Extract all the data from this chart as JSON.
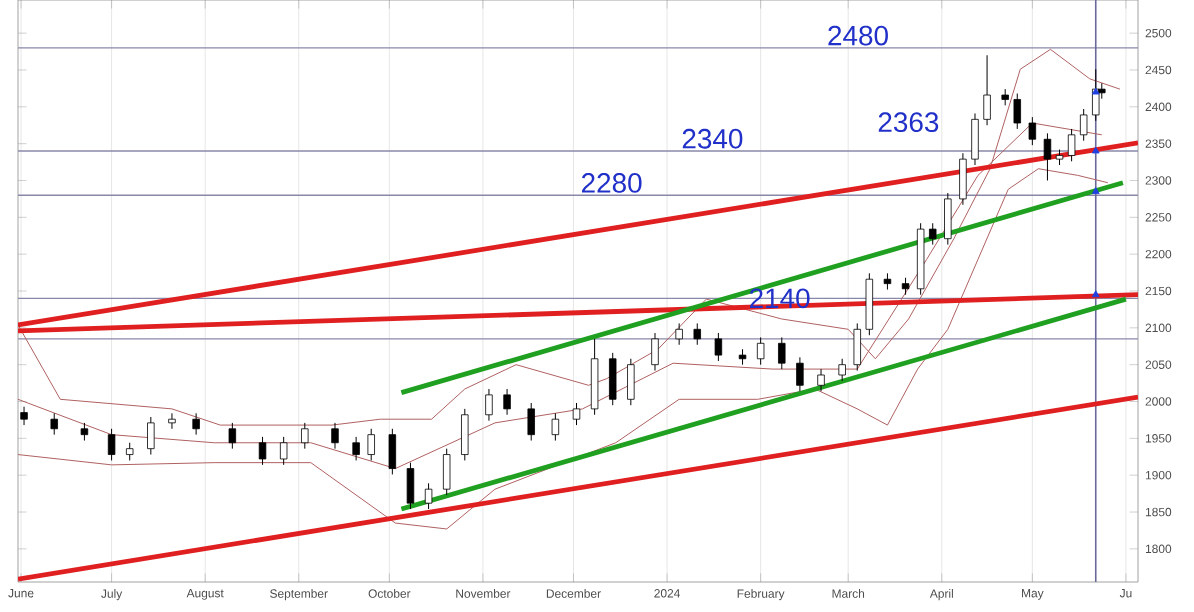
{
  "chart_data": {
    "type": "candlestick",
    "x": [
      "2023-06-02",
      "2023-06-12",
      "2023-06-22",
      "2023-07-01",
      "2023-07-07",
      "2023-07-14",
      "2023-07-21",
      "2023-07-29",
      "2023-08-10",
      "2023-08-20",
      "2023-08-27",
      "2023-09-03",
      "2023-09-13",
      "2023-09-20",
      "2023-09-25",
      "2023-10-02",
      "2023-10-08",
      "2023-10-14",
      "2023-10-20",
      "2023-10-26",
      "2023-11-03",
      "2023-11-09",
      "2023-11-17",
      "2023-11-25",
      "2023-12-02",
      "2023-12-08",
      "2023-12-14",
      "2023-12-20",
      "2023-12-28",
      "2024-01-05",
      "2024-01-11",
      "2024-01-18",
      "2024-01-26",
      "2024-02-01",
      "2024-02-08",
      "2024-02-14",
      "2024-02-21",
      "2024-02-28",
      "2024-03-04",
      "2024-03-08",
      "2024-03-14",
      "2024-03-20",
      "2024-03-25",
      "2024-03-29",
      "2024-04-03",
      "2024-04-08",
      "2024-04-12",
      "2024-04-16",
      "2024-04-22",
      "2024-04-26",
      "2024-05-01",
      "2024-05-06",
      "2024-05-10",
      "2024-05-14",
      "2024-05-18",
      "2024-05-22",
      "2024-05-24"
    ],
    "ohlc": [
      [
        1985,
        1993,
        1968,
        1976
      ],
      [
        1976,
        1984,
        1955,
        1963
      ],
      [
        1963,
        1971,
        1947,
        1955
      ],
      [
        1955,
        1963,
        1920,
        1928
      ],
      [
        1928,
        1944,
        1920,
        1936
      ],
      [
        1936,
        1979,
        1928,
        1971
      ],
      [
        1971,
        1984,
        1963,
        1976
      ],
      [
        1976,
        1984,
        1955,
        1963
      ],
      [
        1963,
        1971,
        1936,
        1944
      ],
      [
        1944,
        1952,
        1914,
        1922
      ],
      [
        1922,
        1952,
        1914,
        1944
      ],
      [
        1944,
        1971,
        1936,
        1963
      ],
      [
        1963,
        1971,
        1936,
        1944
      ],
      [
        1944,
        1952,
        1920,
        1928
      ],
      [
        1928,
        1963,
        1920,
        1955
      ],
      [
        1955,
        1963,
        1901,
        1909
      ],
      [
        1909,
        1917,
        1854,
        1862
      ],
      [
        1862,
        1889,
        1854,
        1881
      ],
      [
        1881,
        1936,
        1873,
        1928
      ],
      [
        1928,
        1990,
        1920,
        1982
      ],
      [
        1982,
        2017,
        1974,
        2009
      ],
      [
        2009,
        2017,
        1982,
        1990
      ],
      [
        1990,
        1998,
        1947,
        1955
      ],
      [
        1955,
        1984,
        1947,
        1976
      ],
      [
        1976,
        1998,
        1968,
        1990
      ],
      [
        1990,
        2085,
        1982,
        2058
      ],
      [
        2058,
        2066,
        1995,
        2003
      ],
      [
        2003,
        2058,
        1995,
        2050
      ],
      [
        2050,
        2093,
        2042,
        2085
      ],
      [
        2085,
        2106,
        2077,
        2098
      ],
      [
        2098,
        2106,
        2077,
        2085
      ],
      [
        2085,
        2093,
        2055,
        2063
      ],
      [
        2063,
        2071,
        2050,
        2058
      ],
      [
        2058,
        2087,
        2050,
        2079
      ],
      [
        2079,
        2087,
        2044,
        2052
      ],
      [
        2052,
        2060,
        2014,
        2022
      ],
      [
        2022,
        2044,
        2014,
        2036
      ],
      [
        2036,
        2058,
        2028,
        2050
      ],
      [
        2050,
        2106,
        2042,
        2098
      ],
      [
        2098,
        2174,
        2090,
        2166
      ],
      [
        2166,
        2174,
        2152,
        2160
      ],
      [
        2160,
        2168,
        2145,
        2153
      ],
      [
        2153,
        2242,
        2145,
        2234
      ],
      [
        2234,
        2242,
        2213,
        2221
      ],
      [
        2221,
        2283,
        2213,
        2275
      ],
      [
        2275,
        2337,
        2267,
        2329
      ],
      [
        2329,
        2391,
        2321,
        2383
      ],
      [
        2383,
        2470,
        2375,
        2416
      ],
      [
        2416,
        2424,
        2402,
        2410
      ],
      [
        2410,
        2418,
        2370,
        2378
      ],
      [
        2378,
        2386,
        2348,
        2356
      ],
      [
        2356,
        2364,
        2300,
        2329
      ],
      [
        2329,
        2342,
        2321,
        2334
      ],
      [
        2334,
        2370,
        2326,
        2362
      ],
      [
        2362,
        2397,
        2354,
        2389
      ],
      [
        2389,
        2451,
        2381,
        2424
      ],
      [
        2424,
        2432,
        2411,
        2419
      ]
    ],
    "color": "#000000",
    "series": [
      {
        "type": "line",
        "color": "#b06060",
        "x": [
          "2023-05-31",
          "2023-06-14",
          "2023-07-21",
          "2023-08-06",
          "2023-09-12",
          "2023-09-28",
          "2023-10-15",
          "2023-10-26",
          "2023-11-12",
          "2023-12-06",
          "2023-12-12",
          "2023-12-29",
          "2024-01-14",
          "2024-02-08",
          "2024-03-01",
          "2024-03-10",
          "2024-03-21",
          "2024-04-05",
          "2024-04-17",
          "2024-04-27",
          "2024-05-07",
          "2024-05-20",
          "2024-05-30"
        ],
        "values": [
          2104,
          2003,
          1990,
          1968,
          1968,
          1976,
          1976,
          2017,
          2050,
          2022,
          2031,
          2071,
          2139,
          2112,
          2098,
          2058,
          2112,
          2221,
          2316,
          2451,
          2478,
          2438,
          2424
        ]
      },
      {
        "type": "line",
        "color": "#b06060",
        "x": [
          "2023-05-31",
          "2023-07-01",
          "2023-08-04",
          "2023-09-05",
          "2023-10-03",
          "2023-11-05",
          "2023-12-04",
          "2024-01-03",
          "2024-02-05",
          "2024-03-04",
          "2024-03-27",
          "2024-04-13",
          "2024-05-01",
          "2024-05-24"
        ],
        "values": [
          2003,
          1955,
          1944,
          1944,
          1909,
          1971,
          1990,
          2052,
          2044,
          2044,
          2193,
          2307,
          2378,
          2362
        ]
      },
      {
        "type": "line",
        "color": "#b06060",
        "x": [
          "2023-05-31",
          "2023-07-01",
          "2023-08-04",
          "2023-09-05",
          "2023-10-03",
          "2023-10-20",
          "2023-11-05",
          "2023-12-06",
          "2023-12-15",
          "2024-01-05",
          "2024-01-31",
          "2024-02-19",
          "2024-03-04",
          "2024-03-14",
          "2024-03-24",
          "2024-04-03",
          "2024-04-13",
          "2024-04-23",
          "2024-05-03",
          "2024-05-16",
          "2024-05-26"
        ],
        "values": [
          1928,
          1914,
          1917,
          1917,
          1835,
          1827,
          1881,
          null,
          1944,
          2003,
          2003,
          2017,
          1990,
          1968,
          2044,
          2098,
          2193,
          2288,
          2316,
          2307,
          2297
        ]
      },
      {
        "type": "line",
        "color": "#e02020",
        "x": [
          "2023-05-31",
          "2024-06-05"
        ],
        "values": [
          2104,
          2351
        ]
      },
      {
        "type": "line",
        "color": "#e02020",
        "x": [
          "2023-05-31",
          "2024-06-05"
        ],
        "values": [
          2096,
          2145
        ]
      },
      {
        "type": "line",
        "color": "#e02020",
        "x": [
          "2023-05-31",
          "2024-06-05"
        ],
        "values": [
          1759,
          2006
        ]
      },
      {
        "type": "line",
        "color": "#20a020",
        "x": [
          "2023-10-05",
          "2024-05-31"
        ],
        "values": [
          2012,
          2297
        ]
      },
      {
        "type": "line",
        "color": "#20a020",
        "x": [
          "2023-10-05",
          "2024-06-01"
        ],
        "values": [
          1854,
          2139
        ]
      },
      {
        "type": "scatter",
        "color": "#2040e0",
        "marker": "triangle",
        "x": [
          "2024-05-22",
          "2024-05-22",
          "2024-05-22",
          "2024-05-22"
        ],
        "values": [
          2420,
          2340,
          2285,
          2145
        ]
      }
    ],
    "ref_lines": [
      {
        "axis": "y",
        "value": 2480,
        "color": "#8888aa",
        "label": "2480"
      },
      {
        "axis": "y",
        "value": 2340,
        "color": "#8888aa",
        "label": "2340"
      },
      {
        "axis": "y",
        "value": 2280,
        "color": "#8888aa",
        "label": "2280"
      },
      {
        "axis": "y",
        "value": 2140,
        "color": "#8888aa",
        "label": "2140"
      },
      {
        "axis": "y",
        "value": 2085,
        "color": "#8888aa"
      },
      {
        "axis": "x",
        "value": "2024-05-22",
        "color": "#6a6a9a"
      }
    ],
    "annotations": [
      "2363"
    ],
    "xlim": [
      "2023-05-31",
      "2024-06-05"
    ],
    "xticks": [
      {
        "value": "2023-06-01",
        "label": "June"
      },
      {
        "value": "2023-07-01",
        "label": "July"
      },
      {
        "value": "2023-08-01",
        "label": "August"
      },
      {
        "value": "2023-09-01",
        "label": "September"
      },
      {
        "value": "2023-10-01",
        "label": "October"
      },
      {
        "value": "2023-11-01",
        "label": "November"
      },
      {
        "value": "2023-12-01",
        "label": "December"
      },
      {
        "value": "2024-01-01",
        "label": "2024"
      },
      {
        "value": "2024-02-01",
        "label": "February"
      },
      {
        "value": "2024-03-01",
        "label": "March"
      },
      {
        "value": "2024-04-01",
        "label": "April"
      },
      {
        "value": "2024-05-01",
        "label": "May"
      },
      {
        "value": "2024-06-01",
        "label": "Ju"
      }
    ],
    "ylim": [
      1755,
      2545
    ],
    "yticks": [
      1800,
      1850,
      1900,
      1950,
      2000,
      2050,
      2100,
      2150,
      2200,
      2250,
      2300,
      2350,
      2400,
      2450,
      2500
    ],
    "grid": "x"
  }
}
